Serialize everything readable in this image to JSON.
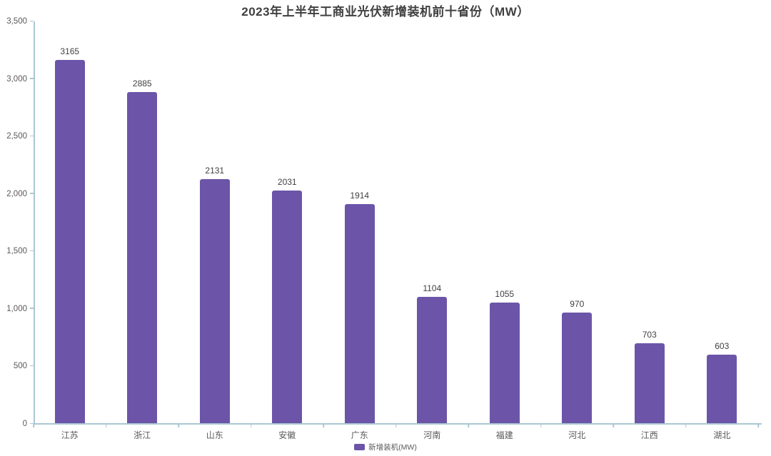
{
  "colors": {
    "background": "#FFFFFF",
    "bar": "#6C55A8",
    "axis": "#A9C7D2",
    "title": "#404040",
    "tick_label": "#595959",
    "value_label": "#404040"
  },
  "chart_data": {
    "type": "bar",
    "title": "2023年上半年工商业光伏新增装机前十省份（MW）",
    "categories": [
      "江苏",
      "浙江",
      "山东",
      "安徽",
      "广东",
      "河南",
      "福建",
      "河北",
      "江西",
      "湖北"
    ],
    "values": [
      3165,
      2885,
      2131,
      2031,
      1914,
      1104,
      1055,
      970,
      703,
      603
    ],
    "series_name": "新增装机(MW)",
    "legend": [
      "新增装机(MW)"
    ],
    "legend_position": "bottom",
    "xlabel": "",
    "ylabel": "",
    "ylim": [
      0,
      3500
    ],
    "grid": false,
    "yticks": [
      {
        "value": 0,
        "label": "0"
      },
      {
        "value": 500,
        "label": "500"
      },
      {
        "value": 1000,
        "label": "1,000"
      },
      {
        "value": 1500,
        "label": "1,500"
      },
      {
        "value": 2000,
        "label": "2,000"
      },
      {
        "value": 2500,
        "label": "2,500"
      },
      {
        "value": 3000,
        "label": "3,000"
      },
      {
        "value": 3500,
        "label": "3,500"
      }
    ]
  }
}
